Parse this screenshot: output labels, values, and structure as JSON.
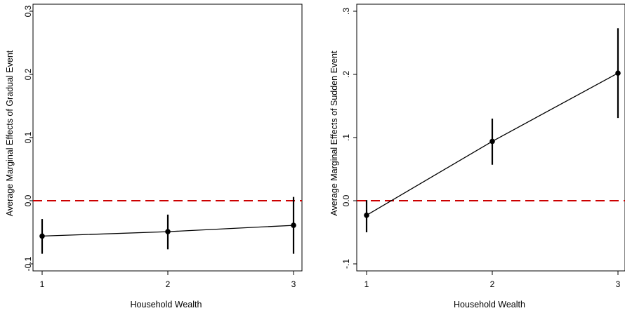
{
  "chart_data": [
    {
      "type": "line",
      "title": "",
      "xlabel": "Household Wealth",
      "ylabel": "Average Marginal Effects of Gradual Event",
      "x": [
        1,
        2,
        3
      ],
      "xticks": [
        "1",
        "2",
        "3"
      ],
      "yticks": [
        "-0.1",
        "0.0",
        "0.1",
        "0.2",
        "0.3"
      ],
      "ylim": [
        -0.1,
        0.3
      ],
      "series": [
        {
          "values": [
            -0.056,
            -0.049,
            -0.039
          ],
          "ci_low": [
            -0.084,
            -0.077,
            -0.084
          ],
          "ci_high": [
            -0.029,
            -0.022,
            0.006
          ],
          "color": "#000000"
        }
      ],
      "reference_line": {
        "y": 0.0,
        "color": "#cc0000",
        "style": "dashed"
      },
      "grid": false,
      "legend": "none"
    },
    {
      "type": "line",
      "title": "",
      "xlabel": "Household Wealth",
      "ylabel": "Average Marginal Effects of Sudden Event",
      "x": [
        1,
        2,
        3
      ],
      "xticks": [
        "1",
        "2",
        "3"
      ],
      "yticks": [
        "-.1",
        "0.0",
        ".1",
        ".2",
        ".3"
      ],
      "ylim": [
        -0.1,
        0.3
      ],
      "series": [
        {
          "values": [
            -0.023,
            0.094,
            0.202
          ],
          "ci_low": [
            -0.05,
            0.057,
            0.131
          ],
          "ci_high": [
            0.001,
            0.13,
            0.273
          ],
          "color": "#000000"
        }
      ],
      "reference_line": {
        "y": 0.0,
        "color": "#cc0000",
        "style": "dashed"
      },
      "grid": false,
      "legend": "none"
    }
  ]
}
